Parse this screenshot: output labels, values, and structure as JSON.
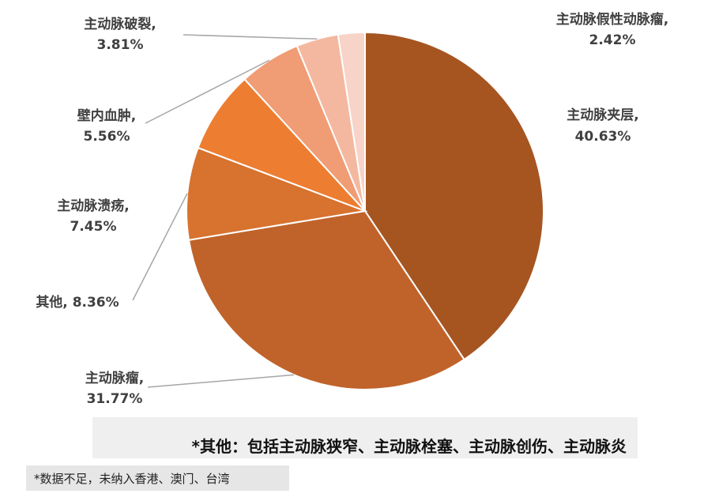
{
  "chart_data": {
    "type": "pie",
    "slices": [
      {
        "label": "主动脉夹层,",
        "value_text": "40.63%",
        "value": 40.63,
        "color": "#A65521"
      },
      {
        "label": "主动脉瘤,",
        "value_text": "31.77%",
        "value": 31.77,
        "color": "#C0632A"
      },
      {
        "label": "其他,",
        "value_text": "8.36%",
        "value": 8.36,
        "color": "#D7722F"
      },
      {
        "label": "主动脉溃疡,",
        "value_text": "7.45%",
        "value": 7.45,
        "color": "#ED7D31"
      },
      {
        "label": "壁内血肿,",
        "value_text": "5.56%",
        "value": 5.56,
        "color": "#F09C74"
      },
      {
        "label": "主动脉破裂,",
        "value_text": "3.81%",
        "value": 3.81,
        "color": "#F4B8A0"
      },
      {
        "label": "主动脉假性动脉瘤,",
        "value_text": "2.42%",
        "value": 2.42,
        "color": "#F8D3C8"
      }
    ]
  },
  "note": "*其他：包括主动脉狭窄、主动脉栓塞、主动脉创伤、主动脉炎",
  "source": "*数据不足，未纳入香港、澳门、台湾"
}
